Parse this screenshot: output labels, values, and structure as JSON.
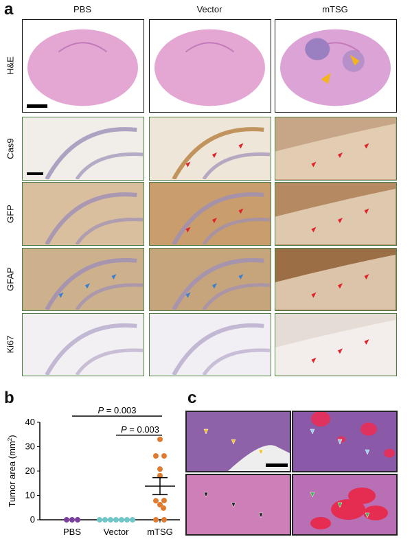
{
  "panel_a": {
    "label": "a",
    "columns": [
      "PBS",
      "Vector",
      "mTSG"
    ],
    "rows": [
      "H&E",
      "Cas9",
      "GFP",
      "GFAP",
      "Ki67"
    ],
    "arrow_colors": {
      "tumor": "#e0232b",
      "astrocyte": "#3b7fd0",
      "yellow": "#f4b41c"
    }
  },
  "panel_b": {
    "label": "b"
  },
  "panel_c": {
    "label": "c",
    "arrow_colors": [
      "#f4c21c",
      "#8fd0f0",
      "#222222",
      "#3bb34a"
    ]
  },
  "chart_data": {
    "type": "scatter",
    "ylabel": "Tumor area (mm",
    "ylabel_sup": "2",
    "ylabel_close": ")",
    "ylim": [
      0,
      40
    ],
    "yticks": [
      "0",
      "10",
      "20",
      "30",
      "40"
    ],
    "categories": [
      "PBS",
      "Vector",
      "mTSG"
    ],
    "series": [
      {
        "category": "PBS",
        "color": "#7b3f9e",
        "values": [
          0,
          0,
          0
        ]
      },
      {
        "category": "Vector",
        "color": "#6fc6c6",
        "values": [
          0,
          0,
          0,
          0,
          0,
          0,
          0
        ]
      },
      {
        "category": "mTSG",
        "color": "#e07b2f",
        "values": [
          33,
          26.2,
          26.2,
          20.8,
          18.1,
          7.8,
          7.9,
          6.2,
          4.8,
          0,
          0
        ],
        "mean": 13.8,
        "sem": 3.5
      }
    ],
    "annotations": [
      {
        "text_italic": "P",
        "text": " = 0.003",
        "from": "PBS",
        "to": "mTSG"
      },
      {
        "text_italic": "P",
        "text": " = 0.003",
        "from": "Vector",
        "to": "mTSG"
      }
    ],
    "grid": false
  }
}
